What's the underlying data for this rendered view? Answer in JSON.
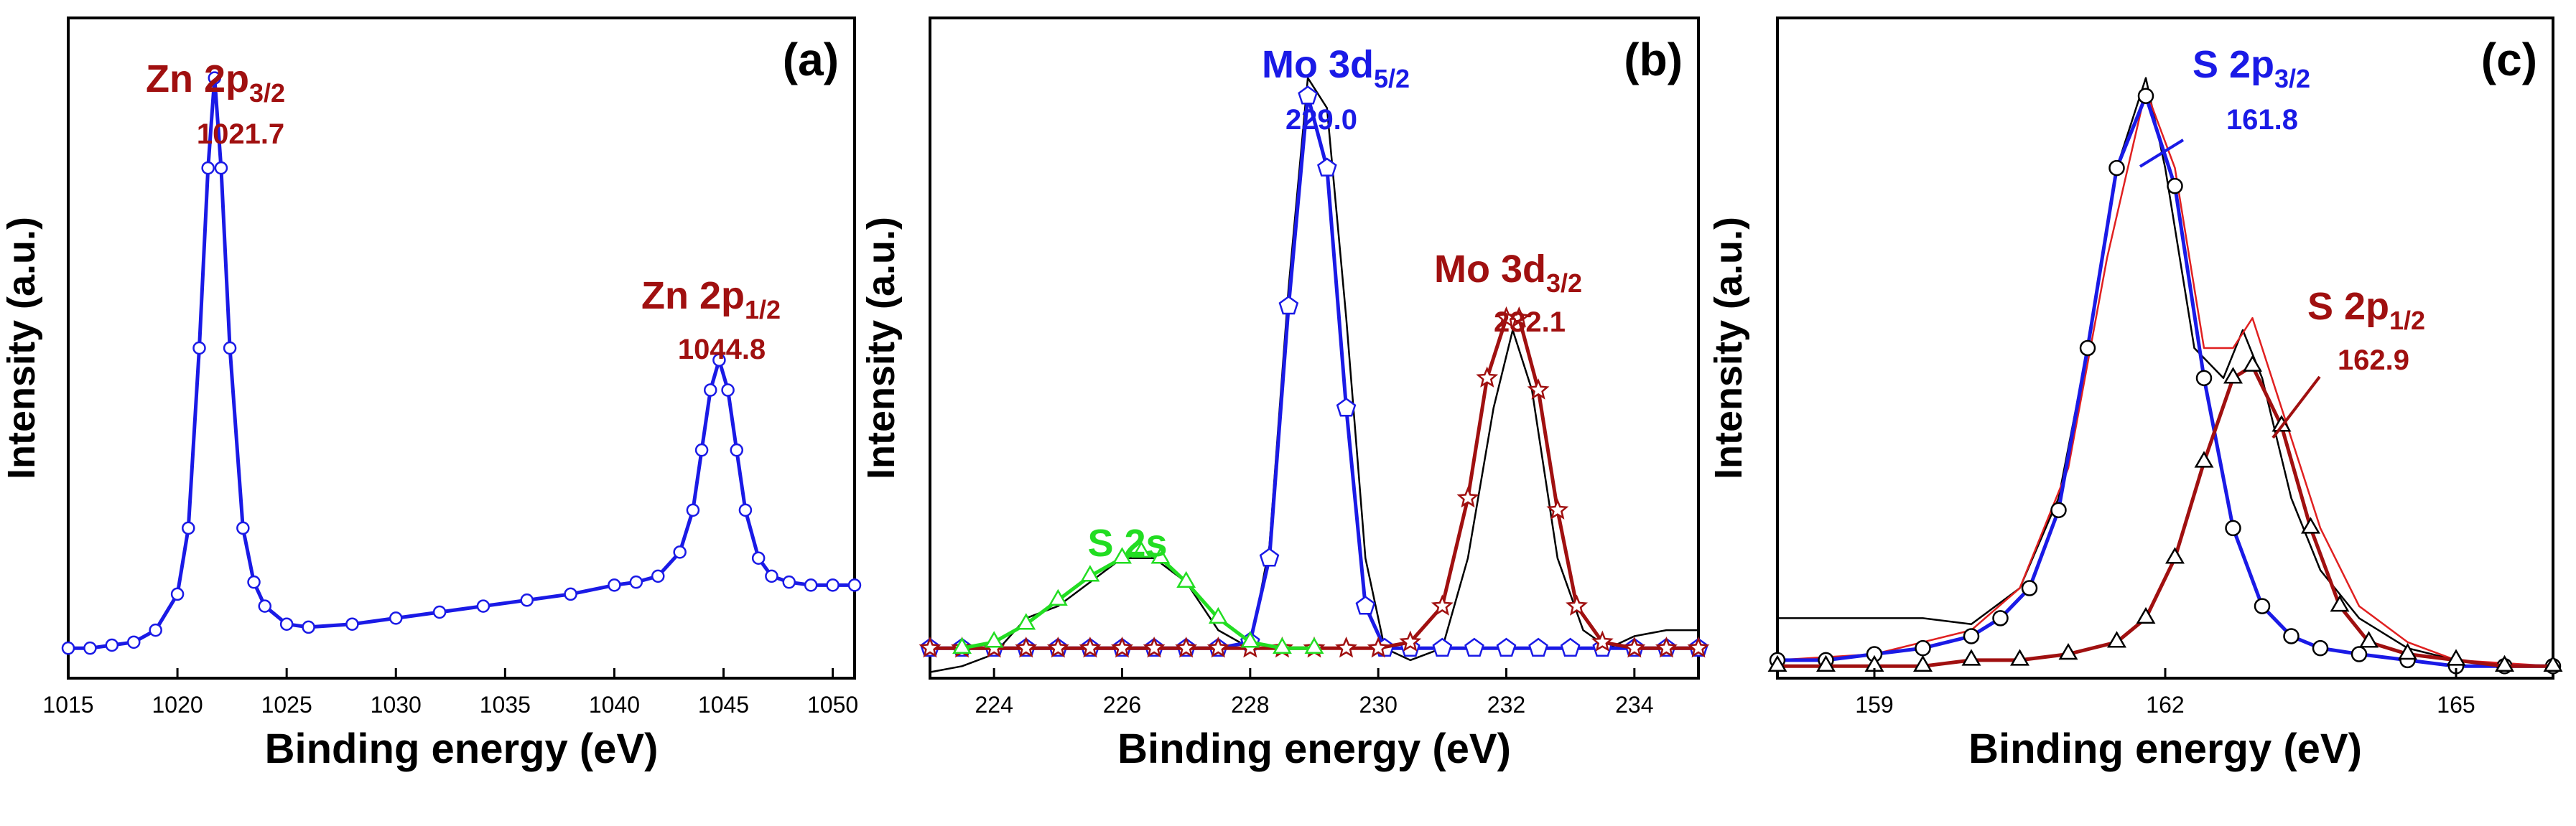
{
  "chart_data": [
    {
      "type": "line",
      "panel_label": "(a)",
      "xlabel": "Binding energy (eV)",
      "ylabel": "Intensity (a.u.)",
      "xlim": [
        1015,
        1051
      ],
      "ylim": [
        0,
        1.1
      ],
      "x_ticks": [
        "1015",
        "1020",
        "1025",
        "1030",
        "1035",
        "1040",
        "1045",
        "1050"
      ],
      "annotations": [
        {
          "main": "Zn 2p",
          "sub": "3/2",
          "value": "1021.7",
          "color": "#a01010",
          "x": 1021.7
        },
        {
          "main": "Zn 2p",
          "sub": "1/2",
          "value": "1044.8",
          "color": "#a01010",
          "x": 1044.8
        }
      ],
      "series": [
        {
          "color": "#1a1ae6",
          "marker": "circle",
          "x": [
            1015,
            1016,
            1017,
            1018,
            1019,
            1020,
            1020.5,
            1021,
            1021.4,
            1021.7,
            1022,
            1022.4,
            1023,
            1023.5,
            1024,
            1025,
            1026,
            1028,
            1030,
            1032,
            1034,
            1036,
            1038,
            1040,
            1041,
            1042,
            1043,
            1043.6,
            1044,
            1044.4,
            1044.8,
            1045.2,
            1045.6,
            1046,
            1046.6,
            1047.2,
            1048,
            1049,
            1050,
            1051
          ],
          "y": [
            0.05,
            0.05,
            0.055,
            0.06,
            0.08,
            0.14,
            0.25,
            0.55,
            0.85,
            1.0,
            0.85,
            0.55,
            0.25,
            0.16,
            0.12,
            0.09,
            0.085,
            0.09,
            0.1,
            0.11,
            0.12,
            0.13,
            0.14,
            0.155,
            0.16,
            0.17,
            0.21,
            0.28,
            0.38,
            0.48,
            0.53,
            0.48,
            0.38,
            0.28,
            0.2,
            0.17,
            0.16,
            0.155,
            0.155,
            0.155
          ]
        }
      ]
    },
    {
      "type": "line",
      "panel_label": "(b)",
      "xlabel": "Binding energy (eV)",
      "ylabel": "Intensity (a.u.)",
      "xlim": [
        223,
        235
      ],
      "ylim": [
        0,
        1.1
      ],
      "x_ticks": [
        "224",
        "226",
        "228",
        "230",
        "232",
        "234"
      ],
      "annotations": [
        {
          "main": "Mo 3d",
          "sub": "5/2",
          "value": "229.0",
          "color": "#1a1ae6",
          "x": 229.0
        },
        {
          "main": "Mo 3d",
          "sub": "3/2",
          "value": "232.1",
          "color": "#a01010",
          "x": 232.1
        },
        {
          "main": "S 2s",
          "sub": "",
          "value": "",
          "color": "#22dd22",
          "x": 226.3
        }
      ],
      "series": [
        {
          "color": "#000000",
          "marker": "none",
          "x": [
            223,
            223.5,
            224,
            224.5,
            225,
            225.5,
            226,
            226.5,
            227,
            227.5,
            228,
            228.3,
            228.6,
            228.9,
            229.2,
            229.5,
            229.8,
            230.1,
            230.5,
            231,
            231.4,
            231.8,
            232.1,
            232.4,
            232.8,
            233.2,
            233.6,
            234,
            234.5,
            235
          ],
          "y": [
            0.01,
            0.02,
            0.04,
            0.1,
            0.12,
            0.16,
            0.2,
            0.2,
            0.16,
            0.08,
            0.05,
            0.22,
            0.65,
            1.0,
            0.95,
            0.6,
            0.2,
            0.05,
            0.03,
            0.05,
            0.2,
            0.45,
            0.58,
            0.48,
            0.2,
            0.08,
            0.05,
            0.07,
            0.08,
            0.08
          ]
        },
        {
          "color": "#1a1ae6",
          "marker": "pentagon",
          "x": [
            223,
            223.5,
            224,
            224.5,
            225,
            225.5,
            226,
            226.5,
            227,
            227.5,
            228,
            228.3,
            228.6,
            228.9,
            229.2,
            229.5,
            229.8,
            230.1,
            230.5,
            231,
            231.5,
            232,
            232.5,
            233,
            233.5,
            234,
            234.5,
            235
          ],
          "y": [
            0.05,
            0.05,
            0.05,
            0.05,
            0.05,
            0.05,
            0.05,
            0.05,
            0.05,
            0.05,
            0.06,
            0.2,
            0.62,
            0.97,
            0.85,
            0.45,
            0.12,
            0.05,
            0.05,
            0.05,
            0.05,
            0.05,
            0.05,
            0.05,
            0.05,
            0.05,
            0.05,
            0.05
          ]
        },
        {
          "color": "#a01010",
          "marker": "star",
          "x": [
            223,
            223.5,
            224,
            224.5,
            225,
            225.5,
            226,
            226.5,
            227,
            227.5,
            228,
            228.5,
            229,
            229.5,
            230,
            230.5,
            231,
            231.4,
            231.7,
            232,
            232.2,
            232.5,
            232.8,
            233.1,
            233.5,
            234,
            234.5,
            235
          ],
          "y": [
            0.05,
            0.05,
            0.05,
            0.05,
            0.05,
            0.05,
            0.05,
            0.05,
            0.05,
            0.05,
            0.05,
            0.05,
            0.05,
            0.05,
            0.05,
            0.06,
            0.12,
            0.3,
            0.5,
            0.6,
            0.6,
            0.48,
            0.28,
            0.12,
            0.06,
            0.05,
            0.05,
            0.05
          ]
        },
        {
          "color": "#22dd22",
          "marker": "triangle",
          "x": [
            223.5,
            224,
            224.5,
            225,
            225.5,
            226,
            226.3,
            226.6,
            227,
            227.5,
            228,
            228.5,
            229
          ],
          "y": [
            0.05,
            0.06,
            0.09,
            0.13,
            0.17,
            0.2,
            0.21,
            0.2,
            0.16,
            0.1,
            0.06,
            0.05,
            0.05
          ]
        }
      ]
    },
    {
      "type": "line",
      "panel_label": "(c)",
      "xlabel": "Binding energy (eV)",
      "ylabel": "Intensity (a.u.)",
      "xlim": [
        158,
        166
      ],
      "ylim": [
        0,
        1.1
      ],
      "x_ticks": [
        "159",
        "162",
        "165"
      ],
      "annotations": [
        {
          "main": "S 2p",
          "sub": "3/2",
          "value": "161.8",
          "color": "#1a1ae6",
          "x": 161.8
        },
        {
          "main": "S 2p",
          "sub": "1/2",
          "value": "162.9",
          "color": "#a01010",
          "x": 162.9
        }
      ],
      "series": [
        {
          "color": "#000000",
          "marker": "none",
          "x": [
            158,
            158.5,
            159,
            159.5,
            160,
            160.5,
            160.9,
            161.2,
            161.5,
            161.8,
            162,
            162.3,
            162.6,
            162.8,
            163,
            163.3,
            163.6,
            164,
            164.5,
            165,
            165.5,
            166
          ],
          "y": [
            0.1,
            0.1,
            0.1,
            0.1,
            0.09,
            0.15,
            0.3,
            0.55,
            0.85,
            1.0,
            0.85,
            0.55,
            0.5,
            0.58,
            0.5,
            0.3,
            0.18,
            0.1,
            0.05,
            0.03,
            0.02,
            0.02
          ]
        },
        {
          "color": "#e02020",
          "marker": "none",
          "x": [
            158,
            159,
            160,
            160.5,
            161,
            161.4,
            161.8,
            162.1,
            162.4,
            162.7,
            162.9,
            163.2,
            163.6,
            164,
            164.5,
            165,
            166
          ],
          "y": [
            0.03,
            0.04,
            0.08,
            0.15,
            0.35,
            0.7,
            0.98,
            0.85,
            0.55,
            0.55,
            0.6,
            0.45,
            0.25,
            0.12,
            0.06,
            0.03,
            0.02
          ]
        },
        {
          "color": "#1a1ae6",
          "marker": "circle",
          "x": [
            158,
            158.5,
            159,
            159.5,
            160,
            160.3,
            160.6,
            160.9,
            161.2,
            161.5,
            161.8,
            162.1,
            162.4,
            162.7,
            163,
            163.3,
            163.6,
            164,
            164.5,
            165,
            165.5,
            166
          ],
          "y": [
            0.03,
            0.03,
            0.04,
            0.05,
            0.07,
            0.1,
            0.15,
            0.28,
            0.55,
            0.85,
            0.97,
            0.82,
            0.5,
            0.25,
            0.12,
            0.07,
            0.05,
            0.04,
            0.03,
            0.02,
            0.02,
            0.02
          ]
        },
        {
          "color": "#a01010",
          "marker": "triangle",
          "x": [
            158,
            158.5,
            159,
            159.5,
            160,
            160.5,
            161,
            161.5,
            161.8,
            162.1,
            162.4,
            162.7,
            162.9,
            163.2,
            163.5,
            163.8,
            164.1,
            164.5,
            165,
            165.5,
            166
          ],
          "y": [
            0.02,
            0.02,
            0.02,
            0.02,
            0.03,
            0.03,
            0.04,
            0.06,
            0.1,
            0.2,
            0.36,
            0.5,
            0.52,
            0.42,
            0.25,
            0.12,
            0.06,
            0.04,
            0.03,
            0.02,
            0.02
          ]
        }
      ]
    }
  ]
}
